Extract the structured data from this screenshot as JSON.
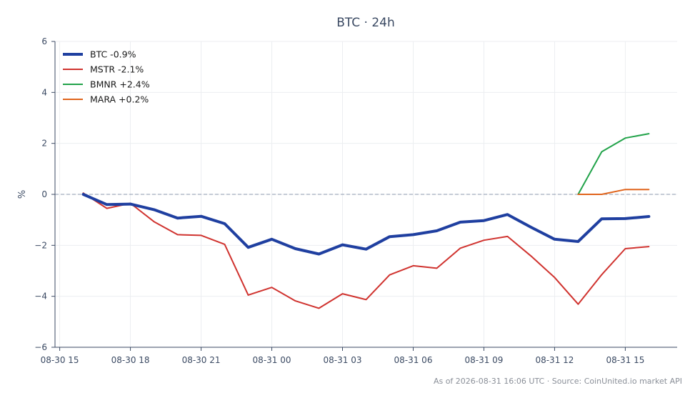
{
  "chart_data": {
    "type": "line",
    "title": "BTC · 24h",
    "xlabel": "",
    "ylabel": "%",
    "ylim": [
      -6,
      6
    ],
    "yticks": [
      -6,
      -4,
      -2,
      0,
      2,
      4,
      6
    ],
    "ytick_labels": [
      "−6",
      "−4",
      "−2",
      "0",
      "2",
      "4",
      "6"
    ],
    "x_tick_labels": [
      "08-30 15",
      "08-30 18",
      "08-30 21",
      "08-31 00",
      "08-31 03",
      "08-31 06",
      "08-31 09",
      "08-31 12",
      "08-31 15"
    ],
    "x_tick_hours": [
      0,
      3,
      6,
      9,
      12,
      15,
      18,
      21,
      24
    ],
    "x_range_hours": [
      -0.2,
      26.2
    ],
    "zero_line": true,
    "grid": true,
    "legend_position": "top-left",
    "series": [
      {
        "name": "BTC -0.9%",
        "color": "#1f3fa0",
        "width": 4,
        "x": [
          1,
          2,
          3,
          4,
          5,
          6,
          7,
          8,
          9,
          10,
          11,
          12,
          13,
          14,
          15,
          16,
          17,
          18,
          19,
          20,
          21,
          22,
          23,
          24,
          25
        ],
        "y": [
          0.0,
          -0.4,
          -0.38,
          -0.6,
          -0.93,
          -0.86,
          -1.15,
          -2.08,
          -1.76,
          -2.13,
          -2.34,
          -1.98,
          -2.15,
          -1.66,
          -1.58,
          -1.43,
          -1.09,
          -1.03,
          -0.79,
          -1.29,
          -1.76,
          -1.85,
          -0.96,
          -0.95,
          -0.87
        ]
      },
      {
        "name": "MSTR -2.1%",
        "color": "#d0332f",
        "width": 2,
        "x": [
          1,
          2,
          3,
          4,
          5,
          6,
          7,
          8,
          9,
          10,
          11,
          12,
          13,
          14,
          15,
          16,
          17,
          18,
          19,
          20,
          21,
          22,
          23,
          24,
          25
        ],
        "y": [
          0.05,
          -0.55,
          -0.35,
          -1.07,
          -1.58,
          -1.61,
          -1.96,
          -3.95,
          -3.65,
          -4.18,
          -4.47,
          -3.9,
          -4.13,
          -3.16,
          -2.8,
          -2.9,
          -2.11,
          -1.8,
          -1.65,
          -2.42,
          -3.26,
          -4.31,
          -3.15,
          -2.13,
          -2.05
        ]
      },
      {
        "name": "BMNR +2.4%",
        "color": "#22a34a",
        "width": 2,
        "x": [
          22,
          23,
          24,
          25
        ],
        "y": [
          0.0,
          1.67,
          2.21,
          2.38
        ]
      },
      {
        "name": "MARA +0.2%",
        "color": "#e0641c",
        "width": 2,
        "x": [
          22,
          23,
          24,
          25
        ],
        "y": [
          0.0,
          0.0,
          0.19,
          0.19
        ]
      }
    ]
  },
  "footer": "As of 2026-08-31 16:06 UTC · Source: CoinUnited.io market API"
}
